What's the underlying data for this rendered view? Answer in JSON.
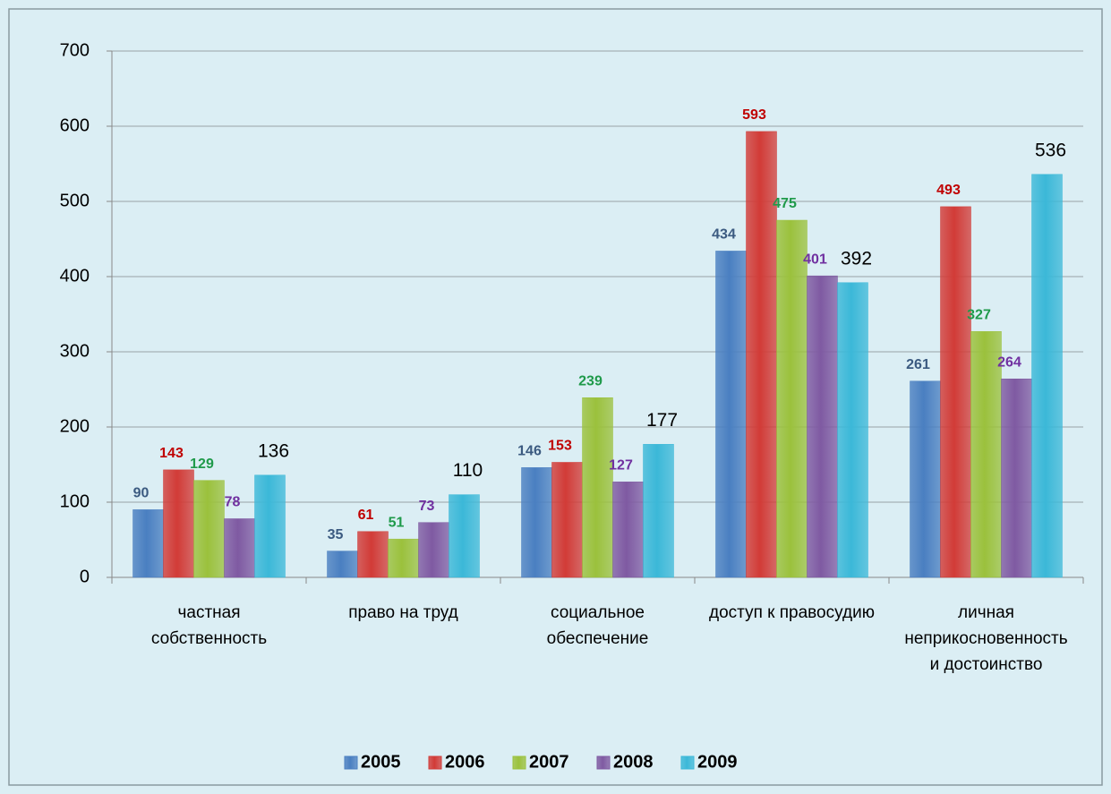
{
  "chart_data": {
    "type": "bar",
    "categories": [
      "частная\nсобственность",
      "право на труд",
      "социальное\nобеспечение",
      "доступ к правосудию",
      "личная\nнеприкосновенность\nи достоинство"
    ],
    "series": [
      {
        "name": "2005",
        "color": "#4a7fc1",
        "label_color": "#3b5a80",
        "values": [
          90,
          35,
          146,
          434,
          261
        ]
      },
      {
        "name": "2006",
        "color": "#d23b37",
        "label_color": "#c00000",
        "values": [
          143,
          61,
          153,
          593,
          493
        ]
      },
      {
        "name": "2007",
        "color": "#9bc13c",
        "label_color": "#1f9a4a",
        "values": [
          129,
          51,
          239,
          475,
          327
        ]
      },
      {
        "name": "2008",
        "color": "#7f5aa2",
        "label_color": "#7030a0",
        "values": [
          78,
          73,
          127,
          401,
          264
        ]
      },
      {
        "name": "2009",
        "color": "#3bb8d8",
        "label_color": "#000000",
        "values": [
          136,
          110,
          177,
          392,
          536
        ]
      }
    ],
    "ylim": [
      0,
      700
    ],
    "yticks": [
      0,
      100,
      200,
      300,
      400,
      500,
      600,
      700
    ],
    "grid": true,
    "legend": "bottom"
  }
}
